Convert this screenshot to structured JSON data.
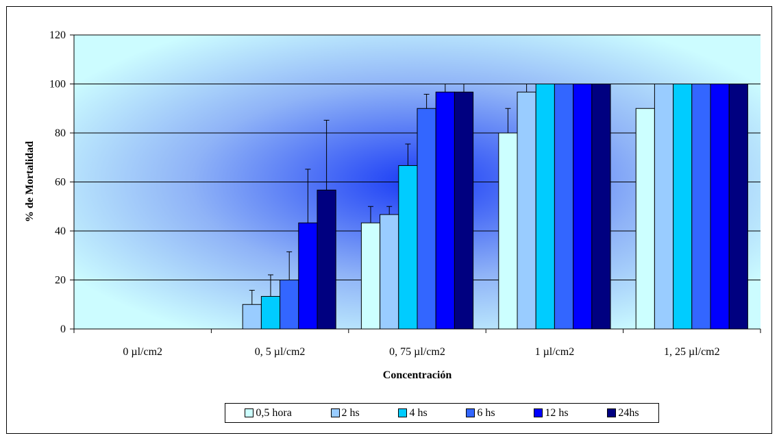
{
  "chart_data": {
    "type": "bar",
    "title": "",
    "xlabel": "Concentración",
    "ylabel": "% de Mortalidad",
    "ylim": [
      0,
      120
    ],
    "yticks": [
      "0",
      "20",
      "40",
      "60",
      "80",
      "100",
      "120"
    ],
    "grid": true,
    "legend_position": "bottom",
    "categories": [
      "0 µl/cm2",
      "0, 5 µl/cm2",
      "0, 75 µl/cm2",
      "1 µl/cm2",
      "1, 25 µl/cm2"
    ],
    "series": [
      {
        "name": "0,5 hora",
        "color": "#ccffff",
        "values": [
          0,
          0,
          43.3,
          80,
          90
        ],
        "error": [
          0,
          0,
          6.7,
          10,
          0
        ]
      },
      {
        "name": "2 hs",
        "color": "#99ccff",
        "values": [
          0,
          10,
          46.7,
          96.7,
          100
        ],
        "error": [
          0,
          5.8,
          3.3,
          3.3,
          0
        ]
      },
      {
        "name": "4 hs",
        "color": "#00ccff",
        "values": [
          0,
          13.3,
          66.7,
          100,
          100
        ],
        "error": [
          0,
          8.8,
          8.8,
          0,
          0
        ]
      },
      {
        "name": "6 hs",
        "color": "#3366ff",
        "values": [
          0,
          20,
          90,
          100,
          100
        ],
        "error": [
          0,
          11.5,
          5.8,
          0,
          0
        ]
      },
      {
        "name": "12 hs",
        "color": "#0000ff",
        "values": [
          0,
          43.3,
          96.7,
          100,
          100
        ],
        "error": [
          0,
          21.9,
          3.3,
          0,
          0
        ]
      },
      {
        "name": "24hs",
        "color": "#000080",
        "values": [
          0,
          56.7,
          96.7,
          100,
          100
        ],
        "error": [
          0,
          28.5,
          3.3,
          0,
          0
        ]
      }
    ]
  }
}
